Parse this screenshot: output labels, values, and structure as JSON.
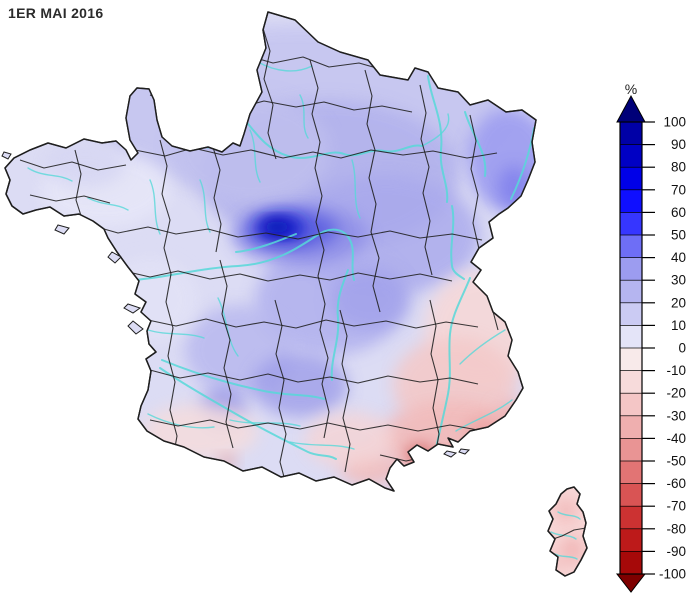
{
  "title": "1ER MAI 2016",
  "legend": {
    "unit": "%",
    "ticks": [
      "100",
      "90",
      "80",
      "70",
      "60",
      "50",
      "40",
      "30",
      "20",
      "10",
      "0",
      "-10",
      "-20",
      "-30",
      "-40",
      "-50",
      "-60",
      "-70",
      "-80",
      "-90",
      "-100"
    ],
    "segments": [
      "#0000a6",
      "#0000c4",
      "#0000e8",
      "#0f0fff",
      "#3636ff",
      "#6e6ef6",
      "#9c9cf0",
      "#b5b5f0",
      "#cbcbf3",
      "#e4e4f8",
      "#f8eaea",
      "#f7dbdb",
      "#f4c6c6",
      "#efafaf",
      "#e99494",
      "#e27474",
      "#d95454",
      "#cc3232",
      "#bd1a1a",
      "#a60909"
    ],
    "arrow_top_color": "#000078",
    "arrow_bottom_color": "#7e0000",
    "tick_color": "#000000",
    "label_color": "#111111"
  },
  "map": {
    "border_color": "#1f1f1f",
    "river_color": "#57d8d8",
    "base_color": "#dcdcf4",
    "wettest_color": "#0410ae",
    "driest_color": "#d66a6a"
  },
  "colors": {
    "background": "#ffffff"
  }
}
